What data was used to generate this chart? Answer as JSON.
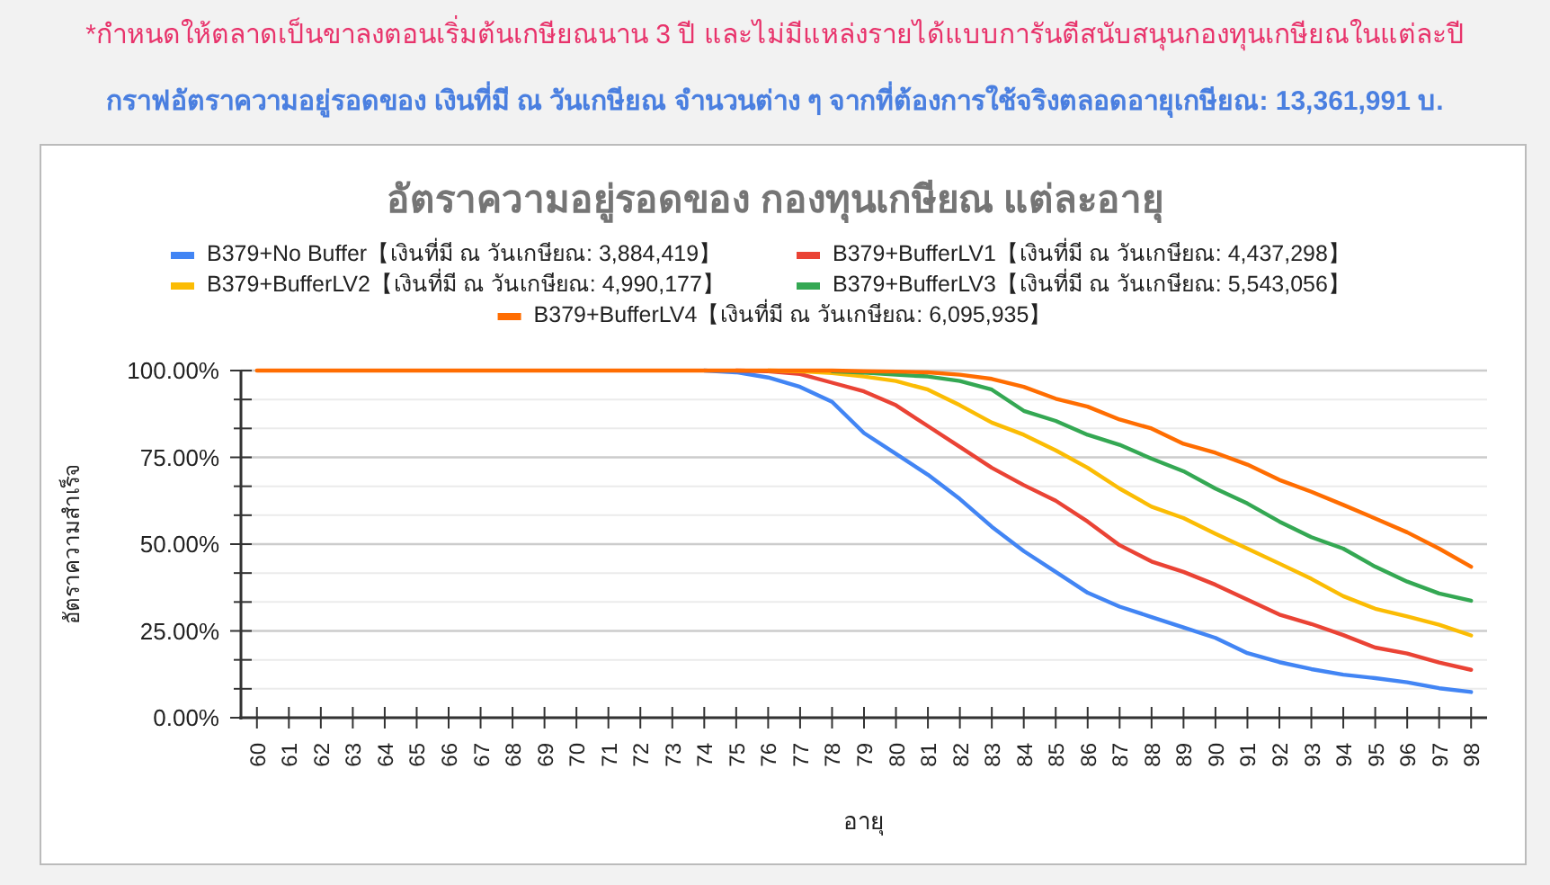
{
  "chart_data": {
    "type": "line",
    "title": "อัตราความอยู่รอดของ กองทุนเกษียณ แต่ละอายุ",
    "xlabel": "อายุ",
    "ylabel": "อัตราความสำเร็จ",
    "annotations": [
      "*กำหนดให้ตลาดเป็นขาลงตอนเริ่มต้นเกษียณนาน 3 ปี และไม่มีแหล่งรายได้แบบการันตีสนับสนุนกองทุนเกษียณในแต่ละปี",
      "กราฟอัตราความอยู่รอดของ เงินที่มี ณ วันเกษียณ จำนวนต่าง ๆ จากที่ต้องการใช้จริงตลอดอายุเกษียณ: 13,361,991 บ."
    ],
    "categories": [
      "60",
      "61",
      "62",
      "63",
      "64",
      "65",
      "66",
      "67",
      "68",
      "69",
      "70",
      "71",
      "72",
      "73",
      "74",
      "75",
      "76",
      "77",
      "78",
      "79",
      "80",
      "81",
      "82",
      "83",
      "84",
      "85",
      "86",
      "87",
      "88",
      "89",
      "90",
      "91",
      "92",
      "93",
      "94",
      "95",
      "96",
      "97",
      "98"
    ],
    "series": [
      {
        "name": "B379+No Buffer【เงินที่มี ณ วันเกษียณ: 3,884,419】",
        "color": "#4285f4",
        "values": [
          null,
          null,
          null,
          null,
          null,
          null,
          null,
          null,
          null,
          null,
          null,
          null,
          null,
          null,
          100,
          99.5,
          98,
          95.3,
          91,
          82,
          76,
          70,
          63,
          55,
          48,
          42,
          36,
          32,
          29,
          26,
          23,
          18.6,
          16,
          14,
          12.4,
          11.4,
          10.2,
          8.5,
          7.4
        ]
      },
      {
        "name": "B379+BufferLV1【เงินที่มี ณ วันเกษียณ: 4,437,298】",
        "color": "#ea4335",
        "values": [
          null,
          null,
          null,
          null,
          null,
          null,
          null,
          null,
          null,
          null,
          null,
          null,
          null,
          null,
          null,
          100,
          99.8,
          99,
          96.5,
          94,
          90,
          84,
          78,
          72,
          67,
          62.5,
          56.5,
          49.7,
          45,
          42,
          38.3,
          34,
          29.7,
          27,
          23.8,
          20.2,
          18.5,
          15.9,
          13.8
        ]
      },
      {
        "name": "B379+BufferLV2【เงินที่มี ณ วันเกษียณ: 4,990,177】",
        "color": "#fbbc04",
        "values": [
          null,
          null,
          null,
          null,
          null,
          null,
          null,
          null,
          null,
          null,
          null,
          null,
          null,
          null,
          null,
          null,
          100,
          99.8,
          99.3,
          98.3,
          97,
          94.5,
          90,
          85,
          81.5,
          77,
          72,
          66,
          60.8,
          57.5,
          53,
          48.7,
          44.4,
          40,
          35,
          31.4,
          29.2,
          26.8,
          23.7
        ]
      },
      {
        "name": "B379+BufferLV3【เงินที่มี ณ วันเกษียณ: 5,543,056】",
        "color": "#34a853",
        "values": [
          null,
          null,
          null,
          null,
          null,
          null,
          null,
          null,
          null,
          null,
          null,
          null,
          null,
          null,
          null,
          null,
          null,
          null,
          99.8,
          99.4,
          98.8,
          98.3,
          97,
          94.5,
          88.4,
          85.5,
          81.5,
          78.6,
          74.6,
          71,
          66,
          61.7,
          56.5,
          52,
          48.7,
          43.5,
          39.2,
          35.8,
          33.7
        ]
      },
      {
        "name": "B379+BufferLV4【เงินที่มี ณ วันเกษียณ: 6,095,935】",
        "color": "#ff6d01",
        "values": [
          100,
          100,
          100,
          100,
          100,
          100,
          100,
          100,
          100,
          100,
          100,
          100,
          100,
          100,
          100,
          100,
          100,
          100,
          100,
          99.8,
          99.7,
          99.5,
          98.8,
          97.6,
          95.3,
          91.9,
          89.6,
          85.9,
          83.3,
          78.9,
          76.3,
          72.9,
          68.5,
          65.1,
          61.3,
          57.4,
          53.4,
          48.7,
          43.5
        ]
      }
    ],
    "ylim": [
      0,
      100
    ],
    "yticks": [
      {
        "value": 0,
        "label": "0.00%"
      },
      {
        "value": 8.33,
        "label": null
      },
      {
        "value": 16.67,
        "label": null
      },
      {
        "value": 25,
        "label": "25.00%"
      },
      {
        "value": 33.33,
        "label": null
      },
      {
        "value": 41.67,
        "label": null
      },
      {
        "value": 50,
        "label": "50.00%"
      },
      {
        "value": 58.33,
        "label": null
      },
      {
        "value": 66.67,
        "label": null
      },
      {
        "value": 75,
        "label": "75.00%"
      },
      {
        "value": 83.33,
        "label": null
      },
      {
        "value": 91.67,
        "label": null
      },
      {
        "value": 100,
        "label": "100.00%"
      }
    ],
    "grid": "y",
    "legend": "top",
    "marker": "none",
    "line_style": "solid"
  }
}
